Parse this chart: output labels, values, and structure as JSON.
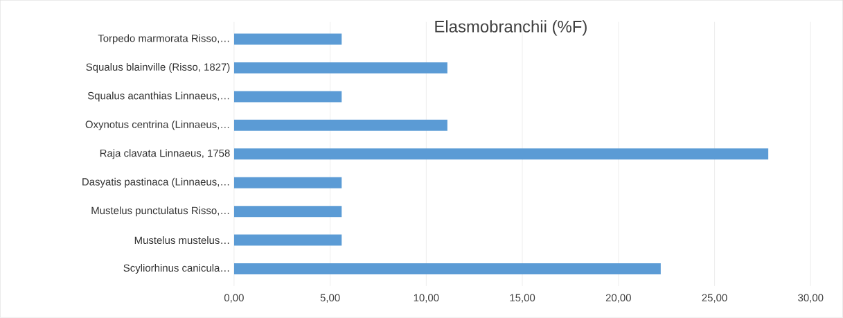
{
  "chart_data": {
    "type": "bar",
    "orientation": "horizontal",
    "title": "Elasmobranchii (%F)",
    "categories": [
      "Torpedo marmorata Risso,…",
      "Squalus blainville  (Risso, 1827)",
      "Squalus acanthias Linnaeus,…",
      "Oxynotus centrina (Linnaeus,…",
      "Raja clavata Linnaeus, 1758",
      "Dasyatis pastinaca (Linnaeus,…",
      "Mustelus punctulatus Risso,…",
      "Mustelus mustelus…",
      "Scyliorhinus canicula…"
    ],
    "values": [
      5.6,
      11.1,
      5.6,
      11.1,
      27.8,
      5.6,
      5.6,
      5.6,
      22.2
    ],
    "color": "#5b9bd5",
    "xlim": [
      0,
      30
    ],
    "xticks": [
      {
        "value": 0,
        "label": "0,00"
      },
      {
        "value": 5,
        "label": "5,00"
      },
      {
        "value": 10,
        "label": "10,00"
      },
      {
        "value": 15,
        "label": "15,00"
      },
      {
        "value": 20,
        "label": "20,00"
      },
      {
        "value": 25,
        "label": "25,00"
      },
      {
        "value": 30,
        "label": "30,00"
      }
    ],
    "grid": "x"
  }
}
